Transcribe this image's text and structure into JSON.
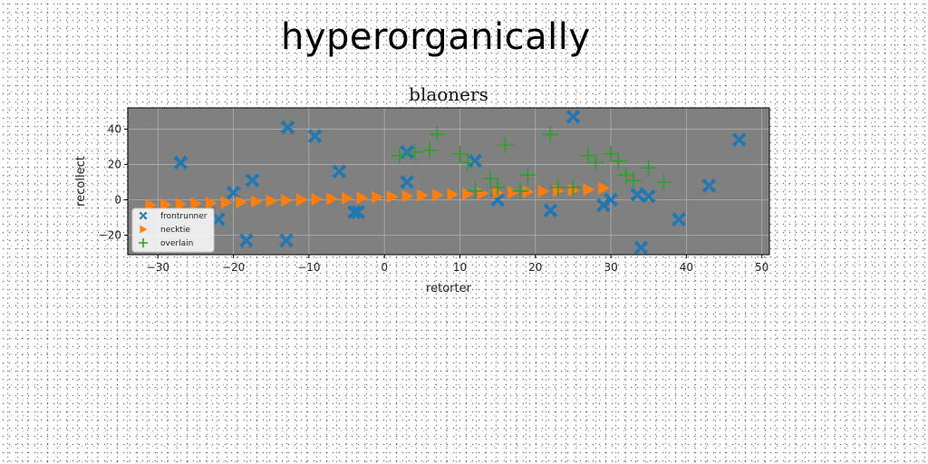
{
  "page_title": "hyperorganically",
  "chart_data": {
    "type": "scatter",
    "title": "blaoners",
    "xlabel": "retorter",
    "ylabel": "recollect",
    "xlim": [
      -34,
      51
    ],
    "ylim": [
      -31,
      52
    ],
    "xticks": [
      -30,
      -20,
      -10,
      0,
      10,
      20,
      30,
      40,
      50
    ],
    "yticks": [
      -20,
      0,
      20,
      40
    ],
    "grid": true,
    "background": "#808080",
    "legend_position": "lower-left",
    "series": [
      {
        "name": "frontrunner",
        "marker": "X",
        "color": "#1f77b4",
        "x": [
          -27,
          -12.8,
          -9.2,
          -6,
          -17.5,
          -20,
          -22,
          -18.3,
          -13,
          -4,
          3,
          3,
          12,
          15,
          22,
          25,
          29,
          30,
          33.5,
          35,
          39,
          43,
          47,
          -3.5,
          34
        ],
        "y": [
          21,
          41,
          36,
          16,
          11,
          4,
          -11,
          -23,
          -23,
          -7,
          27,
          10,
          22,
          0,
          -6,
          47,
          -3,
          0,
          3,
          2,
          -11,
          8,
          34,
          -7,
          -27
        ]
      },
      {
        "name": "necktie",
        "marker": ">",
        "color": "#ff7f0e",
        "x": [
          -31,
          -29,
          -27,
          -25,
          -23,
          -21,
          -19,
          -17,
          -15,
          -13,
          -11,
          -9,
          -7,
          -5,
          -3,
          -1,
          1,
          3,
          5,
          7,
          9,
          11,
          13,
          15,
          17,
          19,
          21,
          23,
          25,
          27,
          29
        ],
        "y": [
          -3,
          -2.7,
          -2.4,
          -2.1,
          -1.8,
          -1.5,
          -1.2,
          -0.9,
          -0.6,
          -0.3,
          0,
          0.3,
          0.6,
          0.9,
          1.2,
          1.5,
          1.8,
          2.1,
          2.4,
          2.7,
          3,
          3.3,
          3.6,
          3.9,
          4.2,
          4.5,
          4.8,
          5.1,
          5.4,
          5.7,
          6.6
        ]
      },
      {
        "name": "overlain",
        "marker": "+",
        "color": "#2ca02c",
        "x": [
          2,
          4,
          6,
          7,
          10,
          11,
          12,
          14,
          15,
          16,
          18,
          19,
          22,
          23,
          25,
          27,
          28,
          30,
          31,
          32,
          33,
          35,
          37
        ],
        "y": [
          25,
          27,
          28,
          37,
          26,
          21,
          5,
          12,
          7,
          31,
          5,
          14,
          37,
          7,
          7,
          25,
          21,
          26,
          22,
          14,
          11,
          18,
          10
        ]
      }
    ]
  }
}
